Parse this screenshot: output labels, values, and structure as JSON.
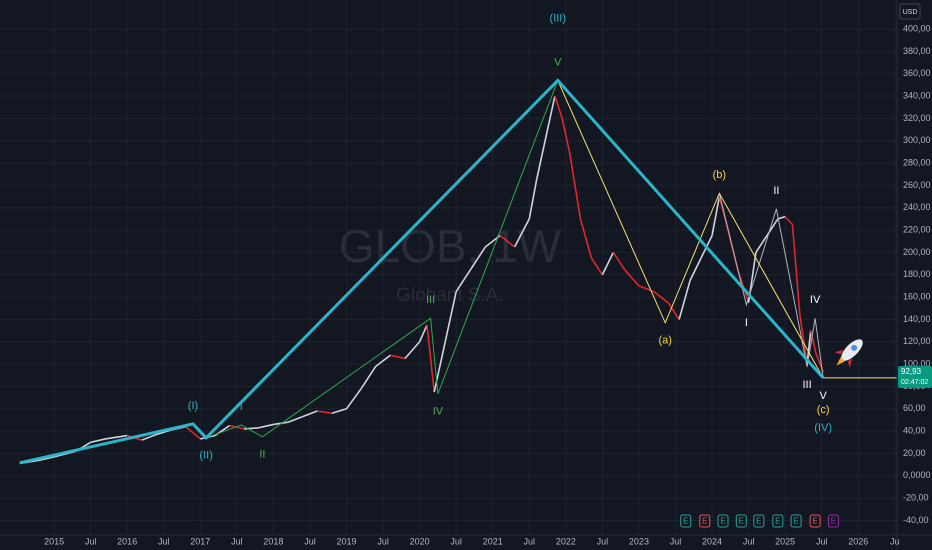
{
  "chart_data": {
    "type": "wave-price",
    "currency": "USD",
    "watermark": {
      "symbol": "GLOB, 1W",
      "name": "Globant S.A."
    },
    "xlim": [
      2014.26,
      2026.53
    ],
    "xticks": [
      2015,
      {
        "value": 2015.5,
        "label": "Jul"
      },
      2016,
      {
        "value": 2016.5,
        "label": "Jul"
      },
      2017,
      {
        "value": 2017.5,
        "label": "Jul"
      },
      2018,
      {
        "value": 2018.5,
        "label": "Jul"
      },
      2019,
      {
        "value": 2019.5,
        "label": "Jul"
      },
      2020,
      {
        "value": 2020.5,
        "label": "Jul"
      },
      2021,
      {
        "value": 2021.5,
        "label": "Jul"
      },
      2022,
      {
        "value": 2022.5,
        "label": "Jul"
      },
      2023,
      {
        "value": 2023.5,
        "label": "Jul"
      },
      2024,
      {
        "value": 2024.5,
        "label": "Jul"
      },
      2025,
      {
        "value": 2025.5,
        "label": "Jul"
      },
      2026,
      {
        "value": 2026.5,
        "label": "Ju"
      }
    ],
    "ylim": [
      -53,
      426
    ],
    "yticks": [
      {
        "value": -40,
        "label": "-40,00"
      },
      {
        "value": -20,
        "label": "-20,00"
      },
      {
        "value": 0,
        "label": "0,0000"
      },
      {
        "value": 20,
        "label": "20,00"
      },
      {
        "value": 40,
        "label": "40,00"
      },
      {
        "value": 60,
        "label": "60,00"
      },
      {
        "value": 80,
        "label": "80,00"
      },
      {
        "value": 100,
        "label": "100,00"
      },
      {
        "value": 120,
        "label": "120,00"
      },
      {
        "value": 140,
        "label": "140,00"
      },
      {
        "value": 160,
        "label": "160,00"
      },
      {
        "value": 180,
        "label": "180,00"
      },
      {
        "value": 200,
        "label": "200,00"
      },
      {
        "value": 220,
        "label": "220,00"
      },
      {
        "value": 240,
        "label": "240,00"
      },
      {
        "value": 260,
        "label": "260,00"
      },
      {
        "value": 280,
        "label": "280,00"
      },
      {
        "value": 300,
        "label": "300,00"
      },
      {
        "value": 320,
        "label": "320,00"
      },
      {
        "value": 340,
        "label": "340,00"
      },
      {
        "value": 360,
        "label": "360,00"
      },
      {
        "value": 380,
        "label": "380,00"
      },
      {
        "value": 400,
        "label": "400,00"
      }
    ],
    "grid": true,
    "price": {
      "up_color": "#d1d4dc",
      "down_color": "#e0262f",
      "x": [
        2014.53,
        2014.8,
        2015.0,
        2015.3,
        2015.5,
        2015.7,
        2016.0,
        2016.2,
        2016.4,
        2016.6,
        2016.8,
        2017.0,
        2017.2,
        2017.4,
        2017.6,
        2017.8,
        2018.0,
        2018.2,
        2018.4,
        2018.6,
        2018.8,
        2019.0,
        2019.2,
        2019.4,
        2019.6,
        2019.8,
        2020.0,
        2020.1,
        2020.2,
        2020.35,
        2020.5,
        2020.7,
        2020.9,
        2021.1,
        2021.3,
        2021.5,
        2021.6,
        2021.75,
        2021.85,
        2021.95,
        2022.05,
        2022.2,
        2022.35,
        2022.5,
        2022.65,
        2022.8,
        2023.0,
        2023.2,
        2023.4,
        2023.55,
        2023.7,
        2023.85,
        2024.0,
        2024.1,
        2024.2,
        2024.35,
        2024.5,
        2024.6,
        2024.75,
        2024.9,
        2025.0,
        2025.1,
        2025.2,
        2025.3,
        2025.35,
        2025.42,
        2025.52
      ],
      "values": [
        11,
        14,
        17,
        22,
        30,
        33,
        36,
        32,
        37,
        41,
        44,
        33,
        36,
        45,
        42,
        43,
        46,
        48,
        53,
        58,
        56,
        60,
        78,
        98,
        108,
        105,
        120,
        135,
        75,
        120,
        165,
        185,
        205,
        215,
        205,
        230,
        265,
        310,
        340,
        320,
        290,
        230,
        195,
        180,
        200,
        185,
        170,
        165,
        155,
        140,
        175,
        195,
        215,
        250,
        225,
        185,
        155,
        200,
        215,
        230,
        232,
        225,
        145,
        100,
        130,
        110,
        93
      ]
    },
    "waves": [
      {
        "color": "#b2b5be",
        "width": 1,
        "x": [
          2024.1,
          2024.47,
          2024.88,
          2025.3,
          2025.41,
          2025.52
        ],
        "values": [
          253,
          153,
          239,
          97.5,
          141,
          87.7
        ],
        "labels": [
          null,
          "I",
          "II",
          "III",
          "IV",
          "V"
        ],
        "label_color": "#ffffff"
      },
      {
        "color": "#f5e26b",
        "width": 1,
        "x": [
          2021.89,
          2023.36,
          2024.1,
          2025.52
        ],
        "values": [
          354,
          137,
          253,
          87.7
        ],
        "labels": [
          null,
          "(a)",
          "(b)",
          "(c)"
        ],
        "label_color": "#f5d44a",
        "ray": true
      },
      {
        "color": "#2fa84f",
        "width": 1,
        "x": [
          2017.08,
          2017.56,
          2017.85,
          2020.15,
          2020.25,
          2021.89
        ],
        "values": [
          34,
          45.6,
          34.9,
          141,
          73.4,
          354
        ],
        "labels": [
          null,
          "I",
          "II",
          "III",
          "IV",
          "V"
        ],
        "label_color": "#4caf50"
      },
      {
        "color": "#2bb5c8",
        "width": 3,
        "x": [
          2014.53,
          2016.9,
          2017.08,
          2021.89,
          2025.52
        ],
        "values": [
          11.6,
          46.5,
          34,
          354,
          87.7
        ],
        "labels": [
          null,
          "(I)",
          "(II)",
          "(III)",
          "(IV)"
        ],
        "label_color": "#2bb5c8"
      }
    ],
    "last_price": {
      "value": 92.93,
      "label": "92,93"
    },
    "countdown": "02:47:02",
    "events": [
      {
        "label": "E",
        "x": 2023.64,
        "color": "#26a69a"
      },
      {
        "label": "E",
        "x": 2023.9,
        "color": "#ef5350"
      },
      {
        "label": "E",
        "x": 2024.15,
        "color": "#26a69a"
      },
      {
        "label": "E",
        "x": 2024.4,
        "color": "#26a69a"
      },
      {
        "label": "E",
        "x": 2024.64,
        "color": "#26a69a"
      },
      {
        "label": "E",
        "x": 2024.9,
        "color": "#26a69a"
      },
      {
        "label": "E",
        "x": 2025.15,
        "color": "#26a69a"
      },
      {
        "label": "E",
        "x": 2025.41,
        "color": "#ef5350"
      },
      {
        "label": "E",
        "x": 2025.66,
        "color": "#9c27b0"
      }
    ]
  }
}
